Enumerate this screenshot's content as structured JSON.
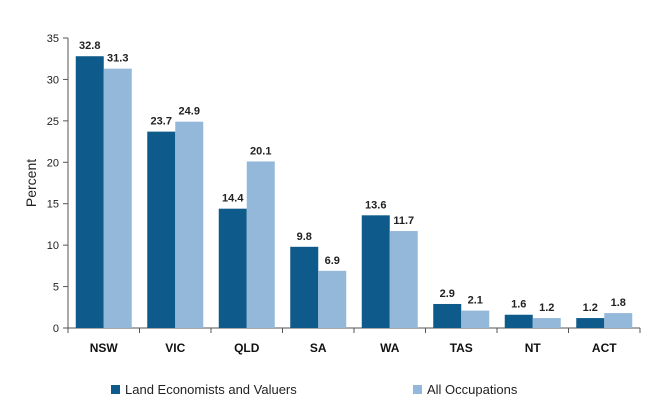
{
  "chart_data": {
    "type": "bar",
    "categories": [
      "NSW",
      "VIC",
      "QLD",
      "SA",
      "WA",
      "TAS",
      "NT",
      "ACT"
    ],
    "series": [
      {
        "name": "Land Economists and Valuers",
        "values": [
          32.8,
          23.7,
          14.4,
          9.8,
          13.6,
          2.9,
          1.6,
          1.2
        ],
        "color": "#0e5a8a"
      },
      {
        "name": "All Occupations",
        "values": [
          31.3,
          24.9,
          20.1,
          6.9,
          11.7,
          2.1,
          1.2,
          1.8
        ],
        "color": "#94b8da"
      }
    ],
    "title": "",
    "xlabel": "",
    "ylabel": "Percent",
    "ylim": [
      0,
      35
    ],
    "yticks": [
      0,
      5,
      10,
      15,
      20,
      25,
      30,
      35
    ],
    "grid": false,
    "legend": "bottom"
  }
}
